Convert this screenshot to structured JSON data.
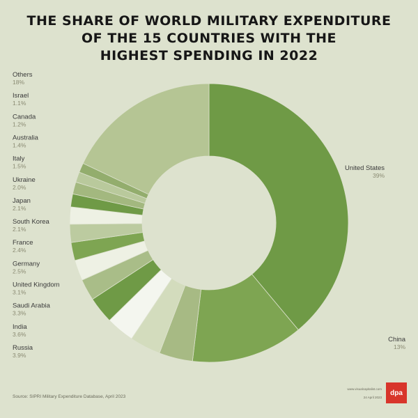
{
  "title_lines": [
    "THE SHARE OF WORLD MILITARY EXPENDITURE",
    "OF THE 15 COUNTRIES WITH THE",
    "HIGHEST SPENDING IN 2022"
  ],
  "chart_data": {
    "type": "pie",
    "variant": "donut",
    "unit": "%",
    "slices": [
      {
        "name": "United States",
        "label": "39%",
        "value": 39,
        "color": "#6f9a46"
      },
      {
        "name": "China",
        "label": "13%",
        "value": 13,
        "color": "#7ea552"
      },
      {
        "name": "Russia",
        "label": "3.9%",
        "value": 3.9,
        "color": "#a7ba84"
      },
      {
        "name": "India",
        "label": "3.6%",
        "value": 3.6,
        "color": "#d3dcbd"
      },
      {
        "name": "Saudi Arabia",
        "label": "3.3%",
        "value": 3.3,
        "color": "#f4f6ef"
      },
      {
        "name": "United Kingdom",
        "label": "3.1%",
        "value": 3.1,
        "color": "#6f9a46"
      },
      {
        "name": "Germany",
        "label": "2.5%",
        "value": 2.5,
        "color": "#a9bd88"
      },
      {
        "name": "France",
        "label": "2.4%",
        "value": 2.4,
        "color": "#eef1e4"
      },
      {
        "name": "South Korea",
        "label": "2.1%",
        "value": 2.1,
        "color": "#7ea552"
      },
      {
        "name": "Japan",
        "label": "2.1%",
        "value": 2.1,
        "color": "#bccba0"
      },
      {
        "name": "Ukraine",
        "label": "2.0%",
        "value": 2.0,
        "color": "#eef1e4"
      },
      {
        "name": "Italy",
        "label": "1.5%",
        "value": 1.5,
        "color": "#6f9a46"
      },
      {
        "name": "Australia",
        "label": "1.4%",
        "value": 1.4,
        "color": "#a3b87f"
      },
      {
        "name": "Canada",
        "label": "1.2%",
        "value": 1.2,
        "color": "#b9c99c"
      },
      {
        "name": "Israel",
        "label": "1.1%",
        "value": 1.1,
        "color": "#93ad6d"
      },
      {
        "name": "Others",
        "label": "18%",
        "value": 18,
        "color": "#b5c594"
      }
    ]
  },
  "source": "Source: SIPRI Military Expenditure Database, April 2023",
  "brand": {
    "text": "www.visualcapitalist.com\n\n24 April 2023",
    "logo": "dpa"
  }
}
